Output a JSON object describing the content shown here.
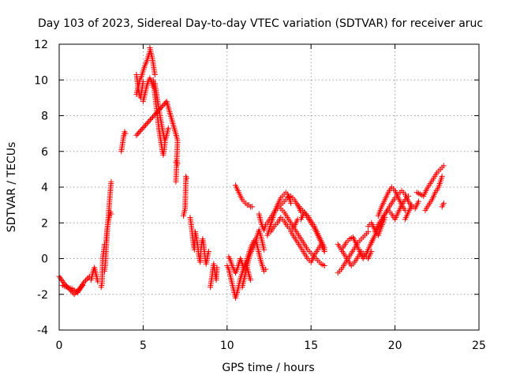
{
  "chart_data": {
    "type": "scatter",
    "title": "Day 103 of 2023, Sidereal Day-to-day VTEC variation (SDTVAR) for receiver aruc",
    "xlabel": "GPS time / hours",
    "ylabel": "SDTVAR / TECUs",
    "xlim": [
      0,
      25
    ],
    "ylim": [
      -4,
      12
    ],
    "xticks": [
      0,
      5,
      10,
      15,
      20,
      25
    ],
    "yticks": [
      -4,
      -2,
      0,
      2,
      4,
      6,
      8,
      10,
      12
    ],
    "grid": true,
    "marker": "+",
    "color": "#ff0000",
    "series": [
      {
        "name": "SDTVAR",
        "segments": [
          {
            "x": [
              0.0,
              0.3,
              0.6,
              0.9,
              1.2,
              1.5,
              1.8
            ],
            "y": [
              -1.0,
              -1.4,
              -1.7,
              -2.0,
              -1.7,
              -1.3,
              -1.0
            ]
          },
          {
            "x": [
              0.2,
              0.5,
              0.8,
              1.1,
              1.4
            ],
            "y": [
              -1.5,
              -1.6,
              -1.7,
              -1.9,
              -1.5
            ]
          },
          {
            "x": [
              1.9,
              2.0,
              2.1,
              2.2,
              2.3
            ],
            "y": [
              -1.2,
              -0.8,
              -0.5,
              -0.9,
              -1.3
            ]
          },
          {
            "x": [
              2.5,
              2.55,
              2.6,
              2.65,
              2.7
            ],
            "y": [
              -1.6,
              -1.4,
              0.1,
              0.4,
              0.8
            ]
          },
          {
            "x": [
              2.7,
              2.75,
              2.8,
              2.85,
              2.9,
              2.95,
              3.0,
              3.05,
              3.1
            ],
            "y": [
              -0.7,
              -0.3,
              0.6,
              1.4,
              2.0,
              2.6,
              3.2,
              3.8,
              4.3
            ]
          },
          {
            "x": [
              2.8,
              2.85,
              2.9,
              2.95,
              3.0,
              3.05,
              3.1
            ],
            "y": [
              1.0,
              1.6,
              1.9,
              2.2,
              2.4,
              2.6,
              2.5
            ]
          },
          {
            "x": [
              3.7,
              3.75,
              3.8,
              3.85,
              3.9,
              3.95
            ],
            "y": [
              6.0,
              6.3,
              6.6,
              6.9,
              7.1,
              7.0
            ]
          },
          {
            "x": [
              4.6,
              4.65,
              4.7,
              4.75,
              4.8,
              4.85,
              4.9,
              4.95,
              5.0
            ],
            "y": [
              10.3,
              10.0,
              9.6,
              9.3,
              9.1,
              9.0,
              9.3,
              9.6,
              9.9
            ]
          },
          {
            "x": [
              4.6,
              4.7,
              4.8,
              4.9,
              5.0,
              5.1,
              5.2,
              5.3,
              5.4
            ],
            "y": [
              9.2,
              9.6,
              10.0,
              10.2,
              10.5,
              10.8,
              11.0,
              11.3,
              11.6
            ]
          },
          {
            "x": [
              5.0,
              5.1,
              5.2,
              5.3,
              5.4,
              5.5,
              5.6
            ],
            "y": [
              8.8,
              9.2,
              9.6,
              9.9,
              10.1,
              9.9,
              9.6
            ]
          },
          {
            "x": [
              5.4,
              5.45,
              5.5,
              5.55,
              5.6,
              5.65,
              5.7
            ],
            "y": [
              11.8,
              11.6,
              11.4,
              11.2,
              10.9,
              10.6,
              10.3
            ]
          },
          {
            "x": [
              5.6,
              5.65,
              5.7,
              5.75,
              5.8,
              5.85,
              5.9,
              5.95,
              6.0,
              6.05,
              6.1,
              6.15,
              6.2,
              6.25,
              6.3
            ],
            "y": [
              10.0,
              9.6,
              9.2,
              8.8,
              8.4,
              8.0,
              7.6,
              7.2,
              6.9,
              6.6,
              6.3,
              6.0,
              5.8,
              6.1,
              6.5
            ]
          },
          {
            "x": [
              5.7,
              5.8,
              5.9,
              6.0,
              6.1,
              6.2,
              6.3,
              6.4,
              6.5
            ],
            "y": [
              9.8,
              9.2,
              8.6,
              8.0,
              7.5,
              7.0,
              6.6,
              6.9,
              7.3
            ]
          },
          {
            "x": [
              4.6,
              6.4,
              7.0,
              7.05,
              6.95
            ],
            "y": [
              6.9,
              8.8,
              6.8,
              6.6,
              4.3
            ]
          },
          {
            "x": [
              6.95,
              7.0,
              7.05
            ],
            "y": [
              5.4,
              5.5,
              5.3
            ]
          },
          {
            "x": [
              7.4,
              7.45,
              7.5,
              7.55,
              7.6
            ],
            "y": [
              2.4,
              2.6,
              2.8,
              4.6,
              4.5
            ]
          },
          {
            "x": [
              7.8,
              7.85,
              7.9,
              7.95,
              8.0,
              8.05,
              8.1,
              8.15,
              8.2,
              8.25,
              8.3,
              8.35,
              8.4,
              8.45,
              8.5,
              8.55,
              8.6,
              8.65,
              8.7,
              8.75,
              8.8,
              8.85,
              8.9
            ],
            "y": [
              2.3,
              2.0,
              1.6,
              1.2,
              0.8,
              0.5,
              1.5,
              1.3,
              1.0,
              0.7,
              0.3,
              0.0,
              -0.2,
              0.6,
              0.9,
              1.1,
              0.8,
              0.4,
              0.0,
              -0.3,
              -0.1,
              0.2,
              0.4
            ]
          },
          {
            "x": [
              9.0,
              9.05,
              9.1,
              9.15,
              9.2,
              9.25,
              9.3,
              9.35,
              9.4
            ],
            "y": [
              -1.6,
              -1.3,
              -1.0,
              -0.6,
              -0.3,
              -0.6,
              -0.9,
              -1.2,
              -0.5
            ]
          },
          {
            "x": [
              10.0,
              10.1,
              10.2,
              10.3,
              10.4,
              10.5,
              10.6,
              10.7,
              10.8,
              10.9,
              11.0,
              11.1,
              11.2,
              11.3,
              11.4
            ],
            "y": [
              -0.4,
              -0.6,
              -1.0,
              -1.4,
              -1.8,
              -2.2,
              -1.9,
              -1.5,
              -1.1,
              -0.8,
              -0.5,
              -0.2,
              -0.5,
              -0.9,
              -1.2
            ]
          },
          {
            "x": [
              10.1,
              10.2,
              10.3,
              10.4,
              10.5,
              10.6,
              10.7,
              10.8,
              10.9,
              11.0,
              11.1,
              11.2,
              11.3,
              11.4,
              11.5,
              11.6,
              11.7,
              11.8,
              11.9,
              12.0,
              12.1,
              12.2,
              12.3
            ],
            "y": [
              0.1,
              -0.1,
              -0.4,
              -0.6,
              -0.8,
              -0.6,
              -0.3,
              0.0,
              -0.3,
              -0.6,
              -0.4,
              0.0,
              0.3,
              0.6,
              0.8,
              1.0,
              1.1,
              0.7,
              0.3,
              -0.1,
              -0.4,
              -0.7,
              -0.6
            ]
          },
          {
            "x": [
              10.9,
              11.0,
              11.1,
              11.2,
              11.3,
              11.4,
              11.5,
              11.6,
              11.7,
              11.8,
              11.9,
              12.0,
              12.1,
              12.2
            ],
            "y": [
              -1.6,
              -1.2,
              -0.8,
              -0.4,
              0.0,
              0.3,
              0.5,
              0.7,
              1.0,
              1.3,
              1.6,
              1.3,
              0.9,
              0.5
            ]
          },
          {
            "x": [
              10.5,
              10.6,
              10.7,
              10.8,
              10.9,
              11.0,
              11.1,
              11.2,
              11.3,
              11.4,
              11.5
            ],
            "y": [
              4.1,
              3.9,
              3.7,
              3.5,
              3.3,
              3.2,
              3.1,
              3.0,
              3.0,
              2.9,
              2.9
            ]
          },
          {
            "x": [
              11.9,
              12.0,
              12.1,
              12.2,
              12.3
            ],
            "y": [
              2.5,
              2.1,
              1.8,
              1.6,
              1.9
            ]
          },
          {
            "x": [
              12.4,
              12.5,
              12.6,
              12.7,
              12.8,
              12.9,
              13.0,
              13.1,
              13.2,
              13.3,
              13.4,
              13.5,
              13.6,
              13.7,
              13.8
            ],
            "y": [
              1.3,
              1.6,
              1.9,
              2.2,
              2.5,
              2.8,
              3.0,
              3.2,
              3.4,
              3.5,
              3.6,
              3.7,
              3.6,
              3.4,
              3.1
            ]
          },
          {
            "x": [
              12.4,
              12.6,
              12.8,
              13.0,
              13.2,
              13.4,
              13.6,
              13.8,
              14.0,
              14.2,
              14.4
            ],
            "y": [
              2.0,
              2.3,
              2.6,
              2.8,
              3.0,
              3.2,
              3.4,
              3.5,
              3.3,
              3.0,
              2.6
            ]
          },
          {
            "x": [
              12.6,
              12.8,
              13.0,
              13.2,
              13.4,
              13.6,
              13.8,
              14.0,
              14.2
            ],
            "y": [
              1.5,
              1.8,
              2.0,
              2.3,
              2.1,
              1.8,
              1.6,
              1.8,
              2.2
            ]
          },
          {
            "x": [
              13.2,
              13.4,
              13.6,
              13.8,
              14.0,
              14.2,
              14.4,
              14.6,
              14.8,
              15.0,
              15.2,
              15.4,
              15.6,
              15.8
            ],
            "y": [
              2.8,
              2.6,
              2.3,
              2.0,
              1.7,
              1.4,
              1.1,
              0.8,
              0.5,
              0.3,
              0.1,
              -0.1,
              -0.3,
              -0.4
            ]
          },
          {
            "x": [
              14.2,
              14.4,
              14.6,
              14.8,
              15.0,
              15.2,
              15.4,
              15.6,
              15.8
            ],
            "y": [
              3.0,
              2.8,
              2.6,
              2.3,
              2.0,
              1.7,
              1.3,
              0.9,
              0.5
            ]
          },
          {
            "x": [
              13.8,
              14.0,
              14.2,
              14.4,
              14.6,
              14.8,
              15.0,
              15.2,
              15.4,
              15.6,
              15.8
            ],
            "y": [
              1.5,
              1.2,
              0.9,
              0.6,
              0.3,
              0.0,
              -0.2,
              0.2,
              0.5,
              0.8,
              0.4
            ]
          },
          {
            "x": [
              14.4,
              14.6,
              14.8,
              15.0,
              15.2,
              15.4,
              15.6,
              15.8
            ],
            "y": [
              2.2,
              2.6,
              2.4,
              2.1,
              1.8,
              1.4,
              1.0,
              0.6
            ]
          },
          {
            "x": [
              16.6,
              16.8,
              17.0,
              17.2,
              17.4,
              17.6,
              17.8,
              18.0,
              18.2,
              18.4
            ],
            "y": [
              -0.8,
              -0.6,
              -0.3,
              0.0,
              0.3,
              0.6,
              0.9,
              1.1,
              1.3,
              1.5
            ]
          },
          {
            "x": [
              16.6,
              16.8,
              17.0,
              17.2,
              17.4,
              17.6,
              17.8,
              18.0,
              18.2,
              18.4,
              18.6
            ],
            "y": [
              0.8,
              0.5,
              0.2,
              -0.1,
              -0.4,
              -0.2,
              0.1,
              0.4,
              0.2,
              0.0,
              0.4
            ]
          },
          {
            "x": [
              16.9,
              17.1,
              17.3,
              17.5,
              17.7,
              17.9,
              18.1,
              18.3,
              18.5,
              18.7
            ],
            "y": [
              0.6,
              0.9,
              1.1,
              1.2,
              0.8,
              0.4,
              0.0,
              0.3,
              0.7,
              1.1
            ]
          },
          {
            "x": [
              18.6,
              18.8,
              19.0,
              19.2,
              19.4,
              19.6,
              19.8,
              20.0,
              20.2,
              20.4,
              20.6,
              20.8,
              21.0
            ],
            "y": [
              0.9,
              1.3,
              1.7,
              2.1,
              2.5,
              2.8,
              3.1,
              3.4,
              3.6,
              3.8,
              3.6,
              3.2,
              2.9
            ]
          },
          {
            "x": [
              18.8,
              19.0,
              19.2,
              19.4,
              19.6,
              19.8,
              20.0,
              20.2,
              20.4,
              20.6,
              20.8
            ],
            "y": [
              1.5,
              1.9,
              2.2,
              2.5,
              2.7,
              2.5,
              2.2,
              2.6,
              3.0,
              3.3,
              3.5
            ]
          },
          {
            "x": [
              19.0,
              19.2,
              19.4,
              19.6,
              19.8,
              20.0,
              20.2,
              20.4,
              20.6
            ],
            "y": [
              2.4,
              2.9,
              3.3,
              3.7,
              4.0,
              3.8,
              3.4,
              3.0,
              2.7
            ]
          },
          {
            "x": [
              18.4,
              18.6,
              18.8,
              19.0,
              19.2,
              19.4
            ],
            "y": [
              1.8,
              2.0,
              1.6,
              1.3,
              1.8,
              2.3
            ]
          },
          {
            "x": [
              20.6,
              20.8,
              21.0,
              21.2,
              21.4
            ],
            "y": [
              2.2,
              2.6,
              3.0,
              2.8,
              3.2
            ]
          },
          {
            "x": [
              21.3,
              21.5,
              21.7,
              21.9,
              22.1,
              22.3,
              22.5,
              22.7,
              22.9
            ],
            "y": [
              3.7,
              3.6,
              3.5,
              3.9,
              4.2,
              4.5,
              4.8,
              5.0,
              5.2
            ]
          },
          {
            "x": [
              21.8,
              22.0,
              22.2,
              22.4,
              22.6,
              22.8
            ],
            "y": [
              2.7,
              3.0,
              3.3,
              3.7,
              4.0,
              4.6
            ]
          },
          {
            "x": [
              22.8,
              22.85,
              22.9
            ],
            "y": [
              2.9,
              3.0,
              3.1
            ]
          }
        ]
      }
    ]
  }
}
